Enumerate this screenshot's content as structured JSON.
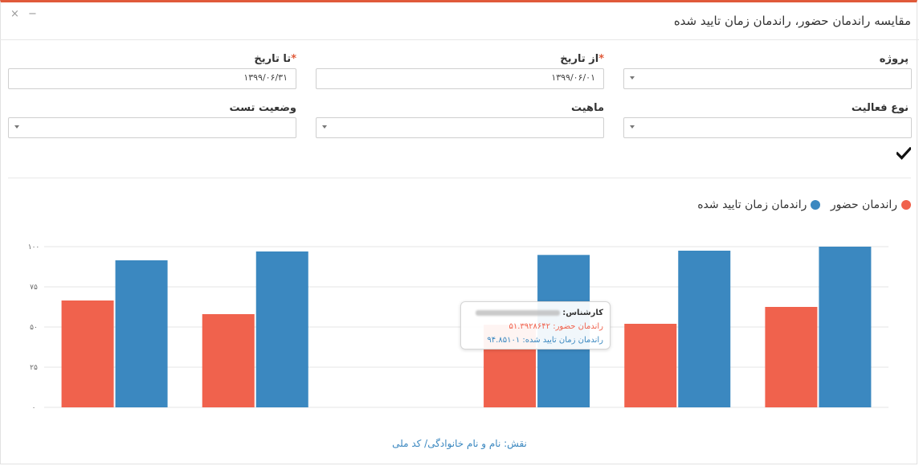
{
  "window": {
    "title": "مقایسه راندمان حضور، راندمان زمان تایید شده",
    "close_glyph": "×",
    "minimize_glyph": "−"
  },
  "filters": {
    "project": {
      "label": "پروژه",
      "value": ""
    },
    "from_date": {
      "label": "از تاریخ",
      "required_mark": "*",
      "value": "۱۳۹۹/۰۶/۰۱"
    },
    "to_date": {
      "label": "تا تاریخ",
      "required_mark": "*",
      "value": "۱۳۹۹/۰۶/۳۱"
    },
    "activity_type": {
      "label": "نوع فعالیت",
      "value": ""
    },
    "nature": {
      "label": "ماهیت",
      "value": ""
    },
    "test_status": {
      "label": "وضعیت تست",
      "value": ""
    },
    "apply_icon": "checkmark-icon"
  },
  "legend": [
    {
      "label": "راندمان حضور",
      "color": "#f0624d"
    },
    {
      "label": "راندمان زمان تایید شده",
      "color": "#3b88c0"
    }
  ],
  "chart_data": {
    "type": "bar",
    "categories": [
      "",
      "",
      "",
      "",
      "",
      ""
    ],
    "series": [
      {
        "name": "راندمان حضور",
        "color": "#f0624d",
        "values": [
          66.5,
          58,
          0,
          51.39,
          52,
          62.5
        ]
      },
      {
        "name": "راندمان زمان تایید شده",
        "color": "#3b88c0",
        "values": [
          91.5,
          97,
          0,
          94.85,
          97.5,
          100
        ]
      }
    ],
    "yticks": [
      "۰",
      "۲۵",
      "۵۰",
      "۷۵",
      "۱۰۰"
    ],
    "ylim": [
      0,
      100
    ],
    "grid": true
  },
  "tooltip": {
    "heading": "کارشناس:",
    "attendance_line": "راندمان حضور: ۵۱.۳۹۲۸۶۴۲",
    "approved_line": "راندمان زمان تایید شده: ۹۴.۸۵۱۰۱"
  },
  "footer": {
    "text": "نقش: نام و نام خانوادگی/ کد ملی"
  }
}
